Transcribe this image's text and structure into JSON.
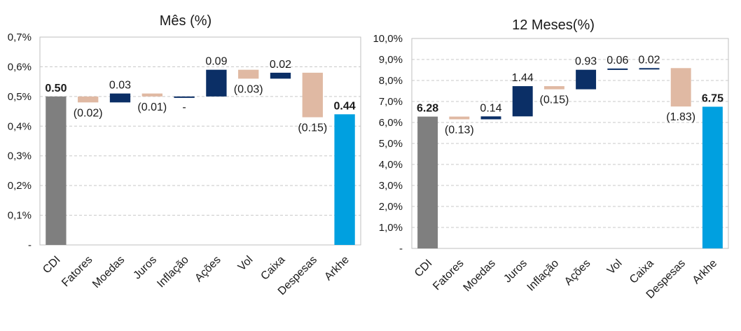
{
  "chart_data": [
    {
      "type": "bar",
      "subtype": "waterfall",
      "title": "Mês (%)",
      "categories": [
        "CDI",
        "Fatores",
        "Moedas",
        "Juros",
        "Inflação",
        "Ações",
        "Vol",
        "Caixa",
        "Despesas",
        "Arkhe"
      ],
      "values": [
        0.5,
        -0.02,
        0.03,
        -0.01,
        0.0,
        0.09,
        -0.03,
        0.02,
        -0.15,
        0.44
      ],
      "bar_kind": [
        "total",
        "delta",
        "delta",
        "delta",
        "delta",
        "delta",
        "delta",
        "delta",
        "delta",
        "total"
      ],
      "data_labels": [
        "0.50",
        "(0.02)",
        "0.03",
        "(0.01)",
        "-",
        "0.09",
        "(0.03)",
        "0.02",
        "(0.15)",
        "0.44"
      ],
      "bold_labels": [
        true,
        false,
        false,
        false,
        false,
        false,
        false,
        false,
        false,
        true
      ],
      "ylim": [
        0,
        0.7
      ],
      "yticks": [
        "-",
        "0,1%",
        "0,2%",
        "0,3%",
        "0,4%",
        "0,5%",
        "0,6%",
        "0,7%"
      ],
      "grid": true,
      "colors": {
        "start": "#7f7f7f",
        "end": "#00a0e0",
        "positive": "#0b2f66",
        "negative": "#e0b9a3"
      }
    },
    {
      "type": "bar",
      "subtype": "waterfall",
      "title": "12 Meses(%)",
      "categories": [
        "CDI",
        "Fatores",
        "Moedas",
        "Juros",
        "Inflação",
        "Ações",
        "Vol",
        "Caixa",
        "Despesas",
        "Arkhe"
      ],
      "values": [
        6.28,
        -0.13,
        0.14,
        1.44,
        -0.15,
        0.93,
        0.06,
        0.02,
        -1.83,
        6.75
      ],
      "bar_kind": [
        "total",
        "delta",
        "delta",
        "delta",
        "delta",
        "delta",
        "delta",
        "delta",
        "delta",
        "total"
      ],
      "data_labels": [
        "6.28",
        "(0.13)",
        "0.14",
        "1.44",
        "(0.15)",
        "0.93",
        "0.06",
        "0.02",
        "(1.83)",
        "6.75"
      ],
      "bold_labels": [
        true,
        false,
        false,
        false,
        false,
        false,
        false,
        false,
        false,
        true
      ],
      "ylim": [
        0,
        10
      ],
      "yticks": [
        "-",
        "1,0%",
        "2,0%",
        "3,0%",
        "4,0%",
        "5,0%",
        "6,0%",
        "7,0%",
        "8,0%",
        "9,0%",
        "10,0%"
      ],
      "grid": true,
      "colors": {
        "start": "#7f7f7f",
        "end": "#00a0e0",
        "positive": "#0b2f66",
        "negative": "#e0b9a3"
      }
    }
  ]
}
